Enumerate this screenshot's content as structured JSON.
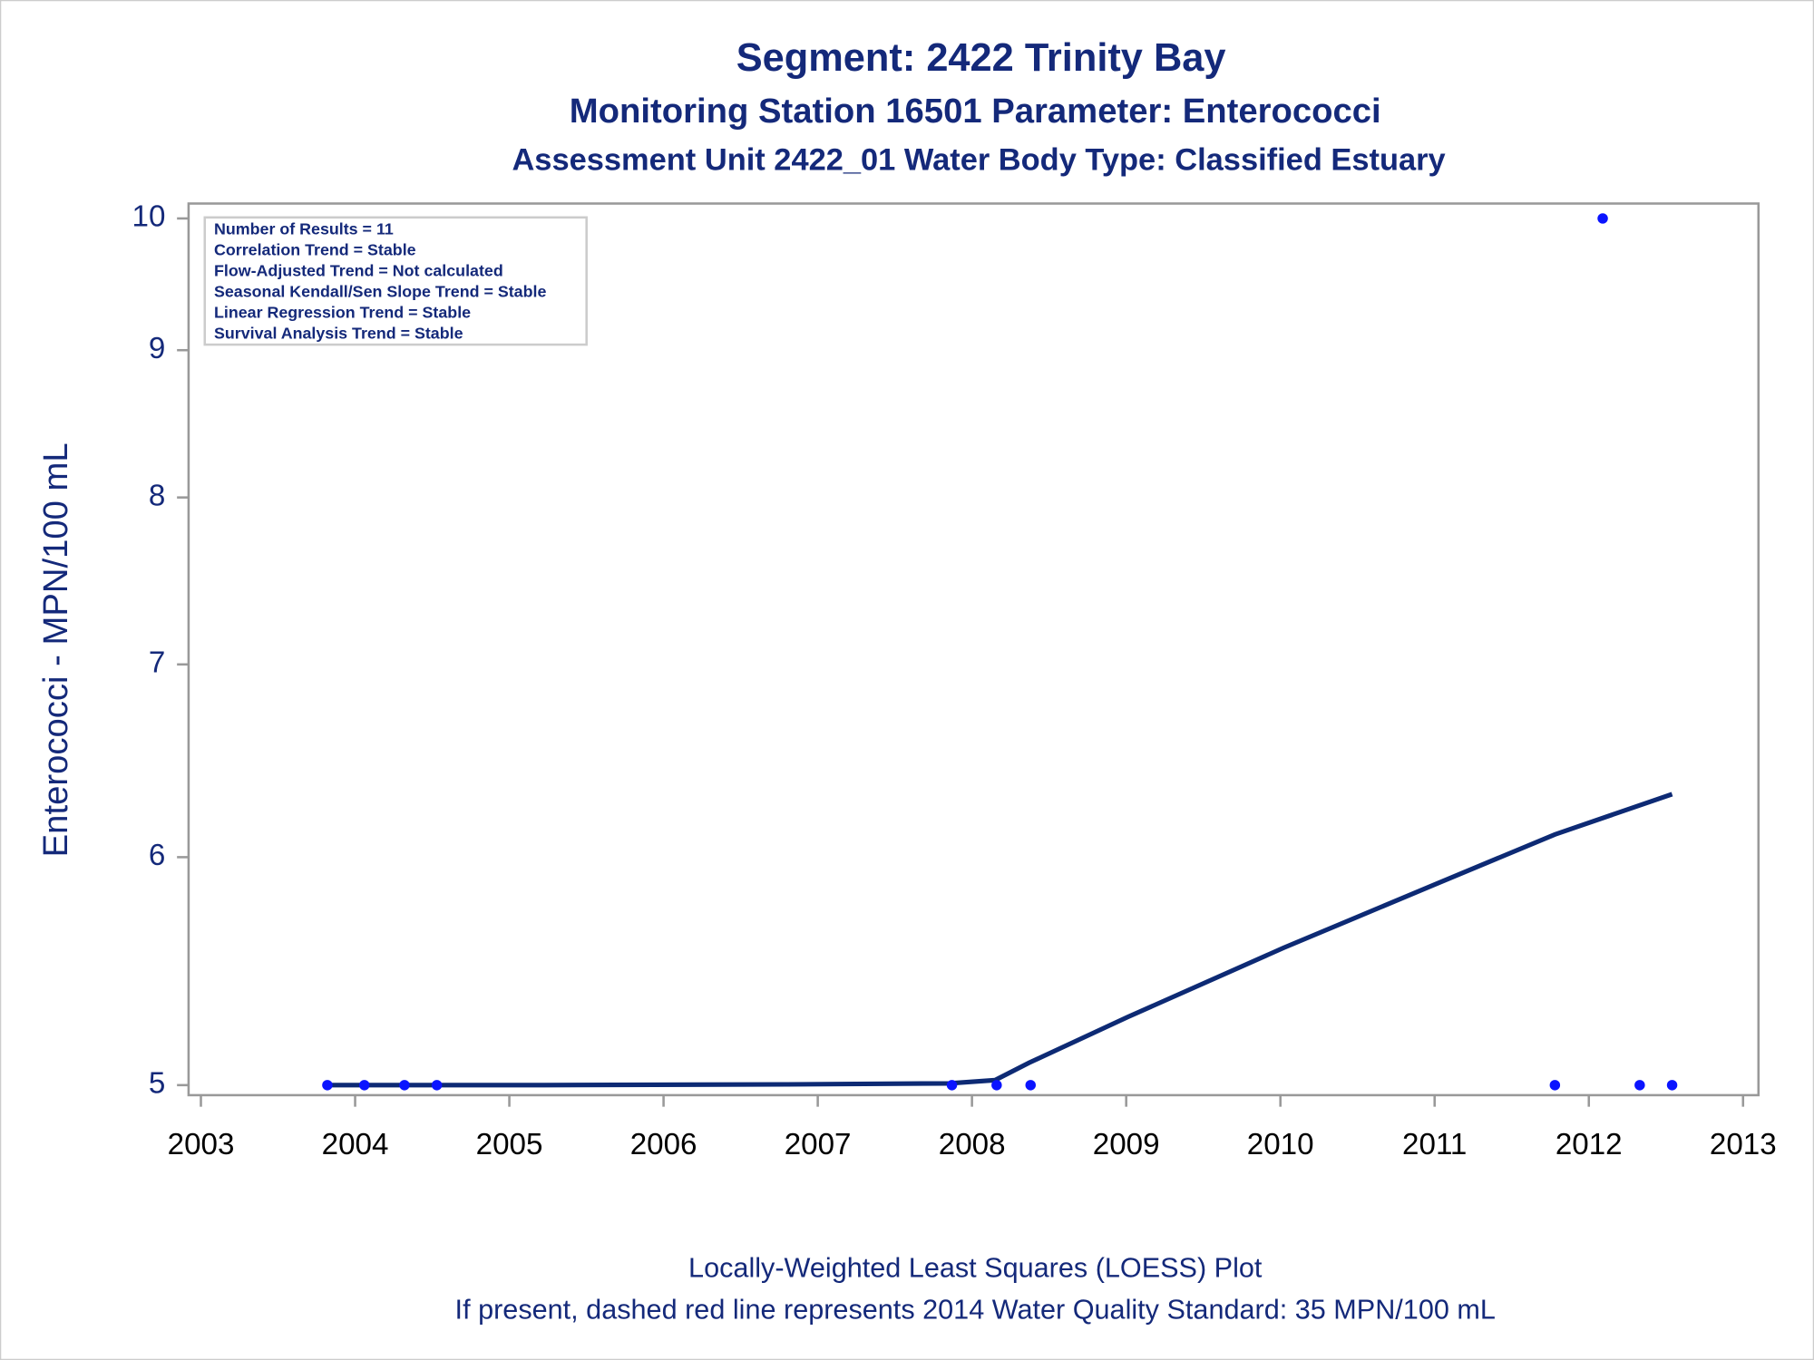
{
  "chart_data": {
    "type": "scatter",
    "title": "Segment: 2422  Trinity Bay",
    "subtitles": [
      "Monitoring Station 16501 Parameter: Enterococci",
      "Assessment Unit 2422_01   Water Body Type: Classified Estuary"
    ],
    "y_label": "Enterococci - MPN/100 mL",
    "annotations": [
      "Number of Results = 11",
      "Correlation Trend = Stable",
      "Flow-Adjusted Trend = Not calculated",
      "Seasonal Kendall/Sen Slope Trend = Stable",
      "Linear Regression Trend = Stable",
      "Survival Analysis Trend = Stable"
    ],
    "footnotes": [
      "Locally-Weighted Least Squares (LOESS) Plot",
      "If present, dashed red line represents 2014 Water Quality Standard: 35 MPN/100 mL"
    ],
    "xlim": [
      2002.92,
      2013.1
    ],
    "xticks": [
      2003,
      2004,
      2005,
      2006,
      2007,
      2008,
      2009,
      2010,
      2011,
      2012,
      2013
    ],
    "ylim": [
      4.96,
      10.12
    ],
    "yticks": [
      5,
      6,
      7,
      8,
      9,
      10
    ],
    "ylog": true,
    "series": [
      {
        "type": "scatter",
        "color": "#0a14ff",
        "x": [
          2003.82,
          2004.06,
          2004.32,
          2004.53,
          2007.87,
          2008.16,
          2008.38,
          2011.78,
          2012.09,
          2012.33,
          2012.54
        ],
        "values": [
          5,
          5,
          5,
          5,
          5,
          5,
          5,
          5,
          10,
          5,
          5
        ]
      },
      {
        "type": "line",
        "color": "#0d2a74",
        "x": [
          2003.82,
          2005.23,
          2006.8,
          2007.85,
          2008.15,
          2008.37,
          2009.01,
          2010.02,
          2011.0,
          2011.78,
          2012.54
        ],
        "values": [
          5,
          5,
          5.003,
          5.007,
          5.02,
          5.09,
          5.28,
          5.58,
          5.87,
          6.11,
          6.31
        ]
      }
    ]
  }
}
